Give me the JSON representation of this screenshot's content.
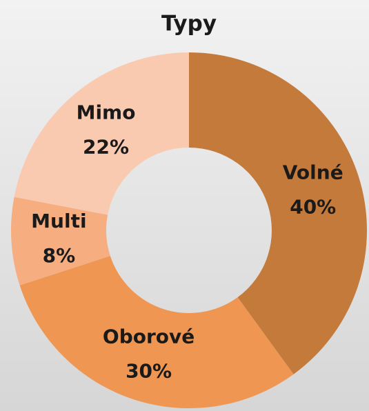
{
  "chart_data": {
    "type": "donut",
    "title": "Typy",
    "categories": [
      "Volné",
      "Oborové",
      "Multi",
      "Mimo"
    ],
    "values": [
      40,
      30,
      8,
      22
    ],
    "value_labels": [
      "40%",
      "30%",
      "8%",
      "22%"
    ],
    "colors": [
      "#c47a3a",
      "#ee9652",
      "#f6ad7f",
      "#facab0"
    ]
  }
}
